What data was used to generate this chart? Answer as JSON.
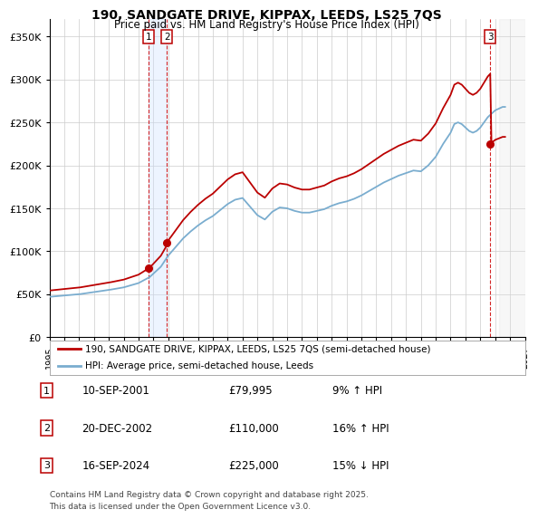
{
  "title": "190, SANDGATE DRIVE, KIPPAX, LEEDS, LS25 7QS",
  "subtitle": "Price paid vs. HM Land Registry's House Price Index (HPI)",
  "background_color": "#ffffff",
  "plot_bg_color": "#ffffff",
  "grid_color": "#cccccc",
  "ylabel_ticks": [
    "£0",
    "£50K",
    "£100K",
    "£150K",
    "£200K",
    "£250K",
    "£300K",
    "£350K"
  ],
  "ylabel_values": [
    0,
    50000,
    100000,
    150000,
    200000,
    250000,
    300000,
    350000
  ],
  "x_start_year": 1995,
  "x_end_year": 2027,
  "sale_prices": [
    79995,
    110000,
    225000
  ],
  "sale_labels": [
    "1",
    "2",
    "3"
  ],
  "sale_notes": [
    "10-SEP-2001",
    "20-DEC-2002",
    "16-SEP-2024"
  ],
  "sale_amounts": [
    "£79,995",
    "£110,000",
    "£225,000"
  ],
  "sale_hpi_notes": [
    "9% ↑ HPI",
    "16% ↑ HPI",
    "15% ↓ HPI"
  ],
  "red_line_color": "#bb0000",
  "blue_line_color": "#7aadcf",
  "dot_color": "#bb0000",
  "vline_color": "#cc0000",
  "shade_color_12": "#cce0ff",
  "future_shade_color": "#e0e0e0",
  "legend_label_red": "190, SANDGATE DRIVE, KIPPAX, LEEDS, LS25 7QS (semi-detached house)",
  "legend_label_blue": "HPI: Average price, semi-detached house, Leeds",
  "footer_text": "Contains HM Land Registry data © Crown copyright and database right 2025.\nThis data is licensed under the Open Government Licence v3.0."
}
